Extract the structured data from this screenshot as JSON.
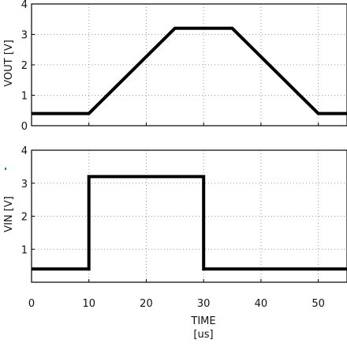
{
  "chart_data": [
    {
      "type": "line",
      "ylabel": "VOUT [V]",
      "xlim": [
        0,
        55
      ],
      "ylim": [
        0,
        4
      ],
      "yticks": [
        0,
        1,
        2,
        3,
        4
      ],
      "grid": true,
      "series": [
        {
          "name": "",
          "x": [
            0,
            10,
            25,
            35,
            50,
            55
          ],
          "y": [
            0.4,
            0.4,
            3.2,
            3.2,
            0.4,
            0.4
          ]
        }
      ]
    },
    {
      "type": "line",
      "ylabel": "VIN [V]",
      "xlabel": "TIME",
      "xunit": "[us]",
      "xlim": [
        0,
        55
      ],
      "ylim": [
        0,
        4
      ],
      "yticks": [
        1,
        2,
        3,
        4
      ],
      "xticks": [
        0,
        10,
        20,
        30,
        40,
        50
      ],
      "grid": true,
      "series": [
        {
          "name": "",
          "x": [
            0,
            10,
            10,
            30,
            30,
            55
          ],
          "y": [
            0.4,
            0.4,
            3.2,
            3.2,
            0.4,
            0.4
          ]
        }
      ]
    }
  ],
  "colors": {
    "trace": "#000000",
    "grid": "#9a9a9a",
    "frame": "#000000"
  }
}
